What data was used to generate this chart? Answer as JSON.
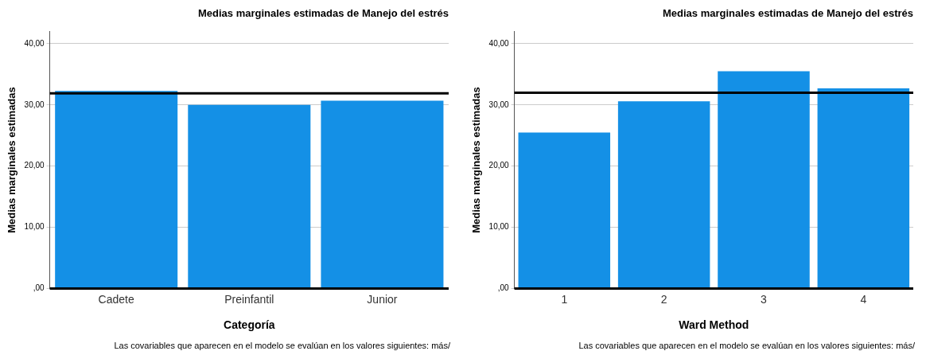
{
  "chart_data": [
    {
      "type": "bar",
      "title": "Medias marginales estimadas de Manejo del estrés",
      "xlabel": "Categoría",
      "ylabel": "Medias marginales estimadas",
      "categories": [
        "Cadete",
        "Preinfantil",
        "Junior"
      ],
      "values": [
        32.3,
        30.0,
        30.7
      ],
      "color": "#1490e6",
      "ylim": [
        0,
        42
      ],
      "yticks": [
        {
          "value": 0,
          "label": ",00"
        },
        {
          "value": 10,
          "label": "10,00"
        },
        {
          "value": 20,
          "label": "20,00"
        },
        {
          "value": 30,
          "label": "30,00"
        },
        {
          "value": 40,
          "label": "40,00"
        }
      ],
      "grid": "y",
      "legend": false,
      "ref_lines": [
        {
          "axis": "y",
          "value": 31.9,
          "label": null,
          "color": "#000000"
        }
      ],
      "annotations": [
        "Las covariables que aparecen en el modelo se evalúan en los valores siguientes: más/"
      ]
    },
    {
      "type": "bar",
      "title": "Medias marginales estimadas de Manejo del estrés",
      "xlabel": "Ward Method",
      "ylabel": "Medias marginales estimadas",
      "categories": [
        "1",
        "2",
        "3",
        "4"
      ],
      "values": [
        25.5,
        30.6,
        35.5,
        32.7
      ],
      "color": "#1490e6",
      "ylim": [
        0,
        42
      ],
      "yticks": [
        {
          "value": 0,
          "label": ",00"
        },
        {
          "value": 10,
          "label": "10,00"
        },
        {
          "value": 20,
          "label": "20,00"
        },
        {
          "value": 30,
          "label": "30,00"
        },
        {
          "value": 40,
          "label": "40,00"
        }
      ],
      "grid": "y",
      "legend": false,
      "ref_lines": [
        {
          "axis": "y",
          "value": 32.0,
          "label": null,
          "color": "#000000"
        }
      ],
      "annotations": [
        "Las covariables que aparecen en el modelo se evalúan en los valores siguientes: más/"
      ]
    }
  ]
}
